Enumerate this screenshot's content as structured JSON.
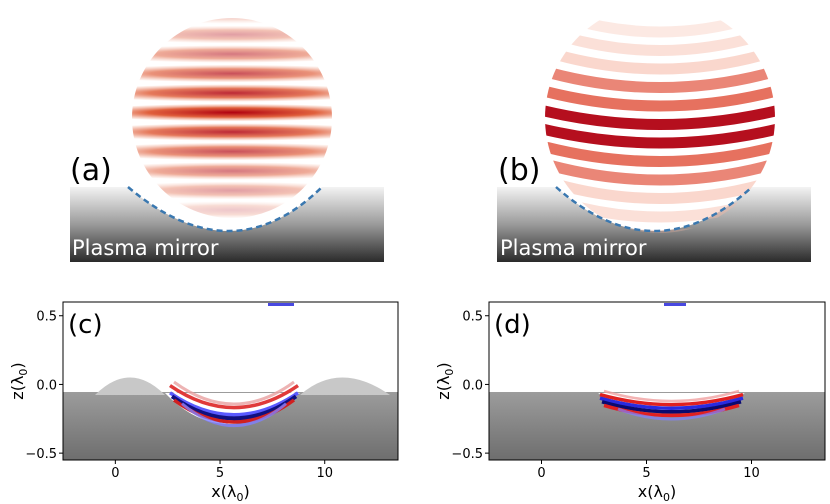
{
  "panels": {
    "a": {
      "label": "(a)",
      "mirror_label": "Plasma mirror"
    },
    "b": {
      "label": "(b)",
      "mirror_label": "Plasma mirror"
    },
    "c": {
      "label": "(c)"
    },
    "d": {
      "label": "(d)"
    }
  },
  "axes": {
    "xlabel_prefix": "x(λ",
    "xlabel_sub": "0",
    "xlabel_suffix": ")",
    "ylabel_prefix": "z(λ",
    "ylabel_sub": "0",
    "ylabel_suffix": ")",
    "x_ticks": [
      "0",
      "5",
      "10"
    ],
    "y_ticks": [
      "0.5",
      "0.0",
      "−0.5"
    ]
  },
  "colors": {
    "field_red": "#b00010",
    "field_blue": "#1a1aa8",
    "mirror_line": "#3a78b0"
  },
  "chart_data": [
    {
      "type": "heatmap",
      "panel": "c",
      "title": "",
      "xlabel": "x(λ0)",
      "ylabel": "z(λ0)",
      "xlim": [
        -2.5,
        13.5
      ],
      "ylim": [
        -0.55,
        0.6
      ],
      "x_ticks": [
        0,
        5,
        10
      ],
      "y_ticks": [
        0.5,
        0.0,
        -0.5
      ]
    },
    {
      "type": "heatmap",
      "panel": "d",
      "title": "",
      "xlabel": "x(λ0)",
      "ylabel": "z(λ0)",
      "xlim": [
        -2.5,
        13.5
      ],
      "ylim": [
        -0.55,
        0.6
      ],
      "x_ticks": [
        0,
        5,
        10
      ],
      "y_ticks": [
        0.5,
        0.0,
        -0.5
      ]
    }
  ]
}
